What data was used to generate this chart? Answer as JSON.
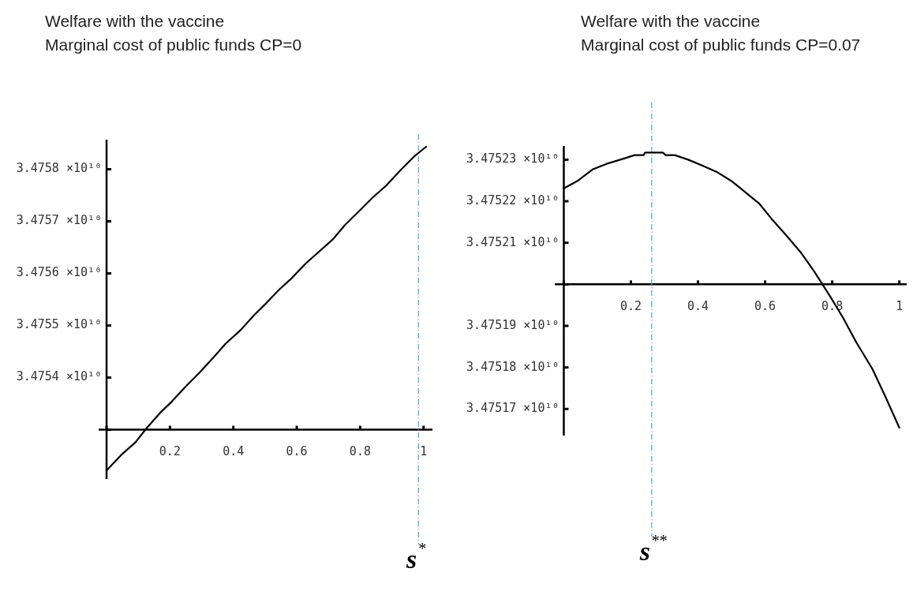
{
  "chart_data": [
    {
      "type": "line",
      "title": "Welfare with the vaccine",
      "subtitle": "Marginal cost of public funds CP=0",
      "x": [
        0,
        0.046,
        0.091,
        0.126,
        0.169,
        0.206,
        0.251,
        0.295,
        0.34,
        0.375,
        0.424,
        0.464,
        0.504,
        0.544,
        0.584,
        0.628,
        0.668,
        0.713,
        0.753,
        0.793,
        0.837,
        0.882,
        0.926,
        0.97,
        1.008
      ],
      "series": [
        {
          "color": "#000000",
          "values": [
            34752216000,
            34752514000,
            34752757000,
            34753027000,
            34753324000,
            34753541000,
            34753838000,
            34754108000,
            34754405000,
            34754649000,
            34754919000,
            34755189000,
            34755432000,
            34755686000,
            34755908000,
            34756189000,
            34756405000,
            34756649000,
            34756935000,
            34757173000,
            34757443000,
            34757686000,
            34757973000,
            34758243000,
            34758432000
          ]
        }
      ],
      "xlim": [
        -0.025,
        1.028
      ],
      "ylim": [
        34752054000,
        34758568000
      ],
      "xticks": [
        {
          "value": 0,
          "label": null
        },
        0.2,
        0.4,
        0.6,
        0.8,
        1
      ],
      "yticks": [
        {
          "value": 34753000000,
          "label": null
        },
        {
          "value": 34754000000,
          "label": "3.4754 ×10¹⁰"
        },
        {
          "value": 34755000000,
          "label": "3.4755 ×10¹⁰"
        },
        {
          "value": 34756000000,
          "label": "3.4756 ×10¹⁰"
        },
        {
          "value": 34757000000,
          "label": "3.4757 ×10¹⁰"
        },
        {
          "value": 34758000000,
          "label": "3.4758 ×10¹⁰"
        }
      ],
      "ref_lines": [
        {
          "axis": "x",
          "value": 0.984,
          "label": "s$^{*}$",
          "color": "#5b9bd5",
          "line_style": "dashdot"
        }
      ],
      "grid": false,
      "legend": false
    },
    {
      "type": "line",
      "title": "Welfare with the vaccine",
      "subtitle": "Marginal cost of public funds CP=0.07",
      "x": [
        0,
        0.043,
        0.087,
        0.131,
        0.176,
        0.211,
        0.238,
        0.242,
        0.295,
        0.304,
        0.331,
        0.371,
        0.415,
        0.455,
        0.499,
        0.539,
        0.583,
        0.619,
        0.663,
        0.707,
        0.743,
        0.771,
        0.796,
        0.832,
        0.872,
        0.92,
        0.96,
        1.0
      ],
      "series": [
        {
          "color": "#000000",
          "values": [
            34752231000,
            34752250000,
            34752277000,
            34752291000,
            34752302000,
            34752311000,
            34752311000,
            34752317000,
            34752317000,
            34752311000,
            34752311000,
            34752300000,
            34752285000,
            34752271000,
            34752249000,
            34752223000,
            34752194000,
            34752158000,
            34752118000,
            34752076000,
            34752035000,
            34752000000,
            34751968000,
            34751920000,
            34751860000,
            34751796000,
            34751727000,
            34751655000
          ]
        }
      ],
      "xlim": [
        -0.027,
        1.022
      ],
      "ylim": [
        34751636000,
        34752333000
      ],
      "xticks": [
        {
          "value": 0,
          "label": null
        },
        0.2,
        0.4,
        0.6,
        0.8,
        1
      ],
      "yticks": [
        {
          "value": 34751700000,
          "label": "3.47517 ×10¹⁰"
        },
        {
          "value": 34751800000,
          "label": "3.47518 ×10¹⁰"
        },
        {
          "value": 34751900000,
          "label": "3.47519 ×10¹⁰"
        },
        {
          "value": 34752000000,
          "label": null
        },
        {
          "value": 34752100000,
          "label": "3.47521 ×10¹⁰"
        },
        {
          "value": 34752200000,
          "label": "3.47522 ×10¹⁰"
        },
        {
          "value": 34752300000,
          "label": "3.47523 ×10¹⁰"
        }
      ],
      "ref_lines": [
        {
          "axis": "x",
          "value": 0.262,
          "label": "s$^{**}$",
          "color": "#5b9bd5",
          "line_style": "dashdot"
        }
      ],
      "grid": false,
      "legend": false
    }
  ]
}
